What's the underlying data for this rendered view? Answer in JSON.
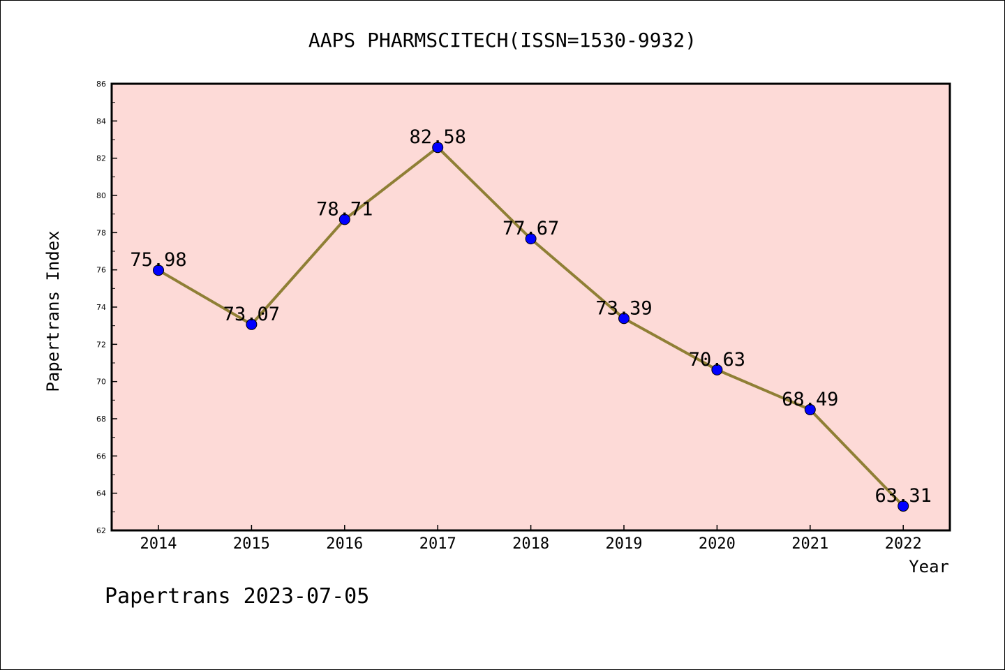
{
  "chart_data": {
    "type": "line",
    "title": "AAPS PHARMSCITECH(ISSN=1530-9932)",
    "xlabel": "Year",
    "ylabel": "Papertrans Index",
    "categories": [
      "2014",
      "2015",
      "2016",
      "2017",
      "2018",
      "2019",
      "2020",
      "2021",
      "2022"
    ],
    "values": [
      75.98,
      73.07,
      78.71,
      82.58,
      77.67,
      73.39,
      70.63,
      68.49,
      63.31
    ],
    "data_labels": [
      "75.98",
      "73.07",
      "78.71",
      "82.58",
      "77.67",
      "73.39",
      "70.63",
      "68.49",
      "63.31"
    ],
    "ylim": [
      62,
      86
    ],
    "yticks": [
      62,
      64,
      66,
      68,
      70,
      72,
      74,
      76,
      78,
      80,
      82,
      84,
      86
    ],
    "ytick_labels": [
      "62",
      "64",
      "66",
      "68",
      "70",
      "72",
      "74",
      "76",
      "78",
      "80",
      "82",
      "84",
      "86"
    ],
    "grid": false,
    "legend": "none",
    "colors": {
      "plot_background": "#fddad7",
      "line": "#8f7f35",
      "marker": "#0000ff",
      "axis": "#000000"
    }
  },
  "footer": {
    "watermark": "Papertrans 2023-07-05"
  }
}
